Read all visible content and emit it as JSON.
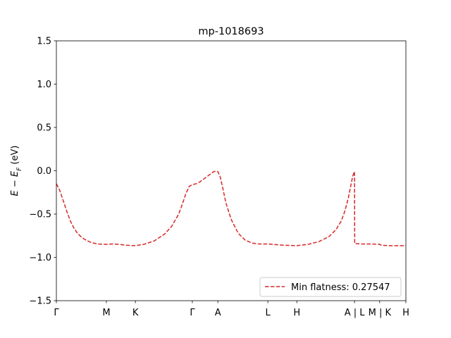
{
  "chart_data": {
    "type": "line",
    "title": "mp-1018693",
    "ylabel_main": "E − E",
    "ylabel_sub": "F",
    "ylabel_unit": " (eV)",
    "ylim": [
      -1.5,
      1.5
    ],
    "xlim": [
      0,
      10.0
    ],
    "yticks": [
      {
        "value": 1.5,
        "label": "1.5"
      },
      {
        "value": 1.0,
        "label": "1.0"
      },
      {
        "value": 0.5,
        "label": "0.5"
      },
      {
        "value": 0.0,
        "label": "0.0"
      },
      {
        "value": -0.5,
        "label": "−0.5"
      },
      {
        "value": -1.0,
        "label": "−1.0"
      },
      {
        "value": -1.5,
        "label": "−1.5"
      }
    ],
    "xticks": [
      {
        "value": 0.0,
        "label": "Γ"
      },
      {
        "value": 1.43,
        "label": "M"
      },
      {
        "value": 2.26,
        "label": "K"
      },
      {
        "value": 3.89,
        "label": "Γ"
      },
      {
        "value": 4.62,
        "label": "A"
      },
      {
        "value": 6.05,
        "label": "L"
      },
      {
        "value": 6.88,
        "label": "H"
      },
      {
        "value": 8.53,
        "label": "A | L"
      },
      {
        "value": 9.25,
        "label": "M | K"
      },
      {
        "value": 10.0,
        "label": "H"
      }
    ],
    "legend_position": "lower-right",
    "series": [
      {
        "name": "Min flatness: 0.27547",
        "color": "#d62728",
        "style": "dashed",
        "x": [
          0.0,
          0.1,
          0.2,
          0.3,
          0.4,
          0.5,
          0.6,
          0.7,
          0.8,
          0.9,
          1.0,
          1.2,
          1.43,
          1.6,
          1.8,
          2.0,
          2.26,
          2.5,
          2.8,
          3.1,
          3.3,
          3.5,
          3.6,
          3.7,
          3.8,
          3.89,
          4.0,
          4.1,
          4.2,
          4.3,
          4.4,
          4.5,
          4.57,
          4.62,
          4.68,
          4.75,
          4.85,
          5.0,
          5.2,
          5.4,
          5.6,
          5.8,
          6.05,
          6.5,
          6.88,
          7.2,
          7.5,
          7.8,
          8.0,
          8.15,
          8.25,
          8.35,
          8.42,
          8.48,
          8.53,
          8.535,
          8.7,
          9.0,
          9.25,
          9.3,
          9.5,
          10.0
        ],
        "y": [
          -0.15,
          -0.23,
          -0.35,
          -0.47,
          -0.58,
          -0.66,
          -0.72,
          -0.76,
          -0.79,
          -0.81,
          -0.83,
          -0.845,
          -0.85,
          -0.845,
          -0.85,
          -0.86,
          -0.865,
          -0.85,
          -0.81,
          -0.73,
          -0.64,
          -0.5,
          -0.39,
          -0.27,
          -0.18,
          -0.16,
          -0.15,
          -0.13,
          -0.1,
          -0.07,
          -0.04,
          -0.01,
          -0.005,
          -0.01,
          -0.06,
          -0.18,
          -0.37,
          -0.56,
          -0.72,
          -0.8,
          -0.835,
          -0.845,
          -0.845,
          -0.86,
          -0.865,
          -0.85,
          -0.82,
          -0.76,
          -0.68,
          -0.58,
          -0.47,
          -0.32,
          -0.18,
          -0.06,
          -0.01,
          -0.84,
          -0.845,
          -0.845,
          -0.85,
          -0.86,
          -0.865,
          -0.865
        ]
      }
    ]
  }
}
